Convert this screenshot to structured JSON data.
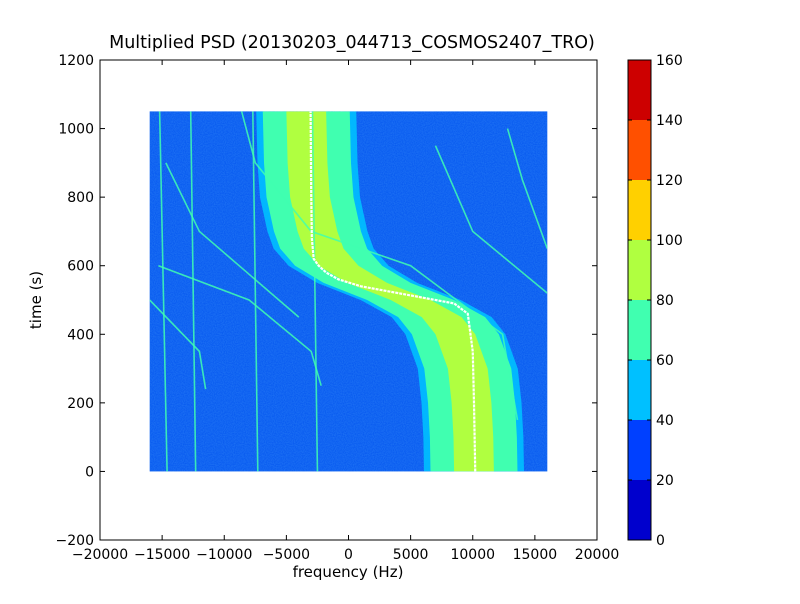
{
  "chart_data": {
    "type": "heatmap",
    "title": "Multiplied PSD (20130203_044713_COSMOS2407_TRO)",
    "xlabel": "frequency (Hz)",
    "ylabel": "time (s)",
    "xlim": [
      -20000,
      20000
    ],
    "ylim": [
      -200,
      1200
    ],
    "x_ticks": [
      "−20000",
      "−15000",
      "−10000",
      "−5000",
      "0",
      "5000",
      "10000",
      "15000",
      "20000"
    ],
    "x_tick_values": [
      -20000,
      -15000,
      -10000,
      -5000,
      0,
      5000,
      10000,
      15000,
      20000
    ],
    "y_ticks": [
      "−200",
      "0",
      "200",
      "400",
      "600",
      "800",
      "1000",
      "1200"
    ],
    "y_tick_values": [
      -200,
      0,
      200,
      400,
      600,
      800,
      1000,
      1200
    ],
    "grid": false,
    "data_extent": {
      "x": [
        -16000,
        16000
      ],
      "y": [
        0,
        1050
      ]
    },
    "colormap": "jet",
    "colorbar": {
      "range": [
        0,
        160
      ],
      "levels": [
        0,
        20,
        40,
        60,
        80,
        100,
        120,
        140,
        160
      ],
      "tick_labels": [
        "0",
        "20",
        "40",
        "60",
        "80",
        "100",
        "120",
        "140",
        "160"
      ],
      "colors": [
        "#0000cd",
        "#0040ff",
        "#00c0ff",
        "#40ffb0",
        "#b0ff40",
        "#ffd000",
        "#ff5000",
        "#cd0000"
      ]
    },
    "background_level_color": "#0a5cf0",
    "main_band": {
      "description_level": "60-100",
      "center_x": [
        [
          0,
          10100
        ],
        [
          100,
          10050
        ],
        [
          200,
          9900
        ],
        [
          300,
          9600
        ],
        [
          400,
          8600
        ],
        [
          450,
          7500
        ],
        [
          500,
          5000
        ],
        [
          550,
          1500
        ],
        [
          600,
          -800
        ],
        [
          650,
          -2000
        ],
        [
          700,
          -2500
        ],
        [
          800,
          -3100
        ],
        [
          900,
          -3300
        ],
        [
          1050,
          -3400
        ]
      ],
      "outer_half_width": 3500,
      "inner_half_width": 1600
    },
    "doppler_trace": {
      "color": "#ffffff",
      "points": [
        [
          0,
          10200
        ],
        [
          200,
          10100
        ],
        [
          350,
          10000
        ],
        [
          460,
          9600
        ],
        [
          490,
          8500
        ],
        [
          520,
          4000
        ],
        [
          540,
          1000
        ],
        [
          560,
          -800
        ],
        [
          580,
          -1800
        ],
        [
          600,
          -2400
        ],
        [
          620,
          -2800
        ],
        [
          680,
          -2950
        ],
        [
          800,
          -3000
        ],
        [
          1050,
          -3050
        ]
      ]
    },
    "interference_lines": [
      {
        "points": [
          [
            0,
            -14600
          ],
          [
            1050,
            -15200
          ]
        ]
      },
      {
        "points": [
          [
            0,
            -12300
          ],
          [
            1050,
            -12700
          ]
        ]
      },
      {
        "points": [
          [
            0,
            -7300
          ],
          [
            1050,
            -7700
          ]
        ]
      },
      {
        "points": [
          [
            0,
            -2500
          ],
          [
            1050,
            -2900
          ]
        ]
      },
      {
        "points": [
          [
            150,
            13600
          ],
          [
            400,
            12400
          ],
          [
            600,
            5000
          ],
          [
            700,
            -3000
          ],
          [
            900,
            -7500
          ],
          [
            1050,
            -8600
          ]
        ]
      },
      {
        "points": [
          [
            520,
            16000
          ],
          [
            700,
            10000
          ],
          [
            950,
            7000
          ]
        ]
      },
      {
        "points": [
          [
            650,
            16000
          ],
          [
            850,
            14000
          ],
          [
            1000,
            12800
          ]
        ]
      },
      {
        "points": [
          [
            600,
            -15300
          ],
          [
            500,
            -8000
          ],
          [
            350,
            -3000
          ],
          [
            250,
            -2200
          ]
        ]
      },
      {
        "points": [
          [
            900,
            -14700
          ],
          [
            700,
            -12000
          ],
          [
            450,
            -4000
          ]
        ]
      },
      {
        "points": [
          [
            500,
            -16000
          ],
          [
            350,
            -12000
          ],
          [
            240,
            -11500
          ]
        ]
      }
    ]
  }
}
